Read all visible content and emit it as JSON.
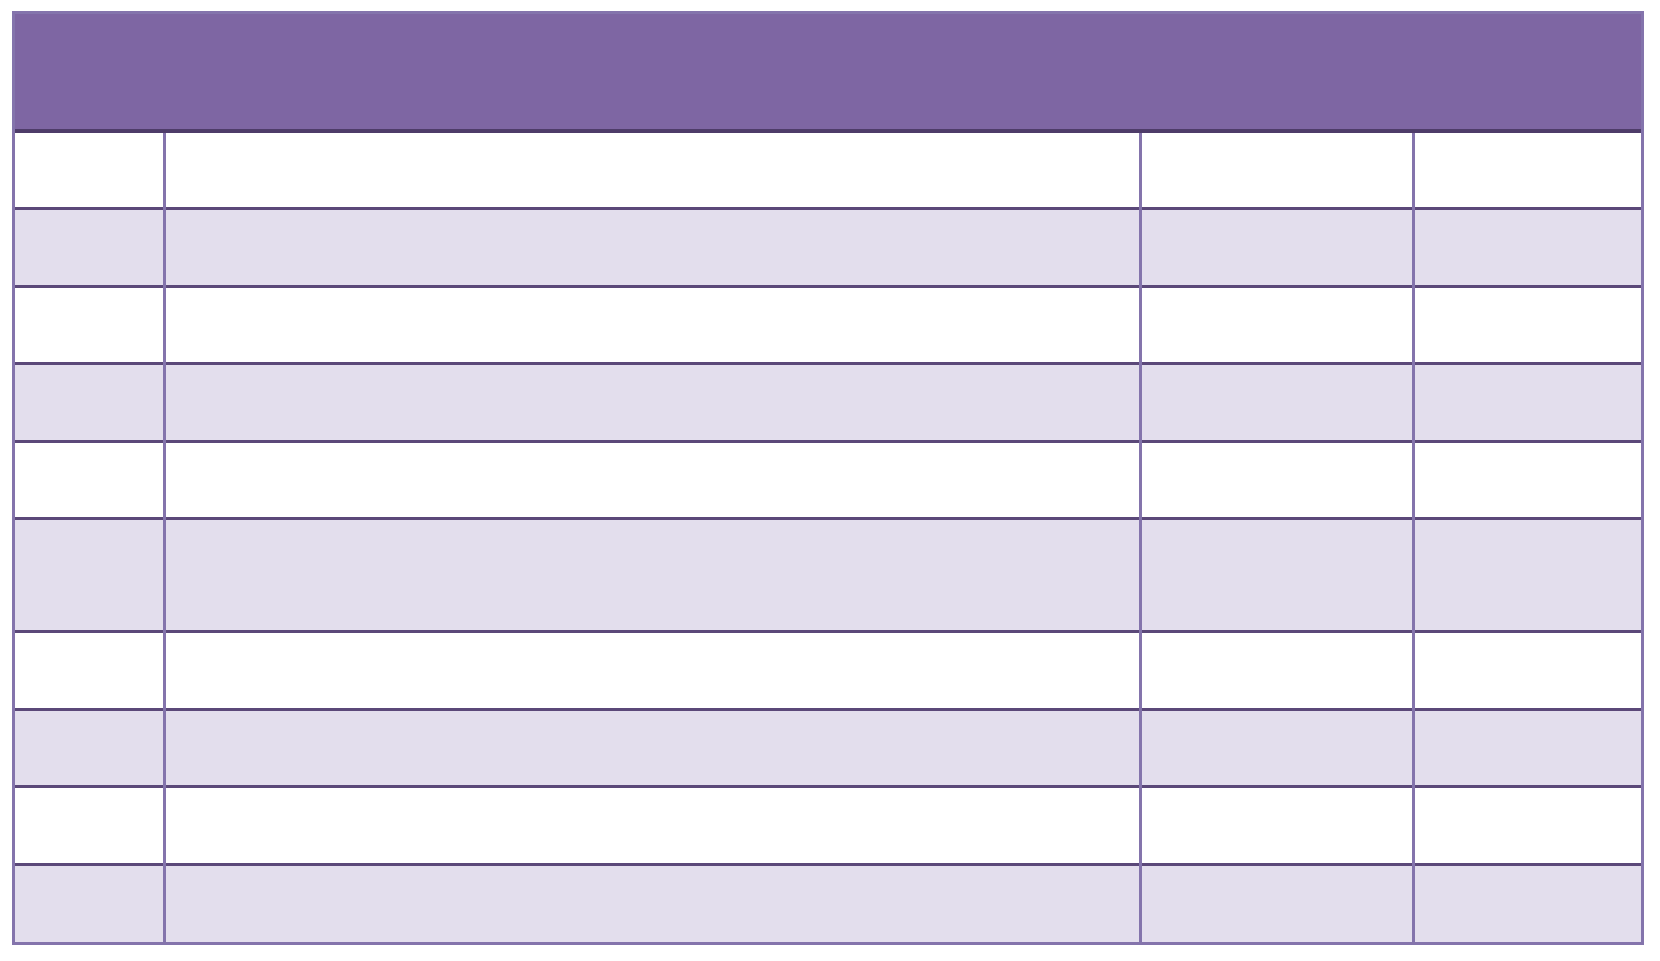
{
  "page": {
    "background_color": "#ffffff"
  },
  "table": {
    "header": {
      "title": "",
      "fill_color": "#7E66A3",
      "underline_color": "#4E3C69"
    },
    "style": {
      "band_fill_color": "#E3DEED",
      "plain_fill_color": "#ffffff",
      "outer_border_color": "#8474AC",
      "vertical_divider_color": "#8474AC",
      "horizontal_divider_color": "#5B4879"
    },
    "column_count": 4,
    "row_count": 10,
    "rows": [
      {
        "cells": [
          "",
          "",
          "",
          ""
        ]
      },
      {
        "cells": [
          "",
          "",
          "",
          ""
        ]
      },
      {
        "cells": [
          "",
          "",
          "",
          ""
        ]
      },
      {
        "cells": [
          "",
          "",
          "",
          ""
        ]
      },
      {
        "cells": [
          "",
          "",
          "",
          ""
        ]
      },
      {
        "cells": [
          "",
          "",
          "",
          ""
        ]
      },
      {
        "cells": [
          "",
          "",
          "",
          ""
        ]
      },
      {
        "cells": [
          "",
          "",
          "",
          ""
        ]
      },
      {
        "cells": [
          "",
          "",
          "",
          ""
        ]
      },
      {
        "cells": [
          "",
          "",
          "",
          ""
        ]
      }
    ]
  }
}
